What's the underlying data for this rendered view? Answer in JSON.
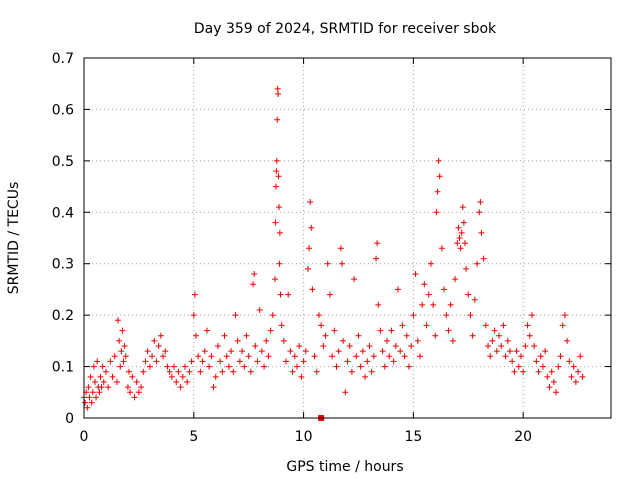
{
  "chart_data": {
    "type": "scatter",
    "title": "Day 359 of 2024, SRMTID for receiver sbok",
    "xlabel": "GPS time / hours",
    "ylabel": "SRMTID / TECUs",
    "xlim": [
      0,
      24
    ],
    "ylim": [
      0,
      0.7
    ],
    "xticks": [
      0,
      5,
      10,
      15,
      20
    ],
    "xtick_labels": [
      "0",
      "5",
      "10",
      "15",
      "20"
    ],
    "yticks": [
      0,
      0.1,
      0.2,
      0.3,
      0.4,
      0.5,
      0.6,
      0.7
    ],
    "ytick_labels": [
      "0",
      "0.1",
      "0.2",
      "0.3",
      "0.4",
      "0.5",
      "0.6",
      "0.7"
    ],
    "grid": true,
    "colors": {
      "series": "#ee0000",
      "grid": "#a0a0a0"
    },
    "series": [
      {
        "name": "SRMTID",
        "marker": "plus",
        "points": [
          [
            0.0,
            0.04
          ],
          [
            0.05,
            0.03
          ],
          [
            0.1,
            0.05
          ],
          [
            0.15,
            0.02
          ],
          [
            0.2,
            0.06
          ],
          [
            0.25,
            0.04
          ],
          [
            0.3,
            0.08
          ],
          [
            0.35,
            0.03
          ],
          [
            0.4,
            0.05
          ],
          [
            0.45,
            0.1
          ],
          [
            0.5,
            0.07
          ],
          [
            0.55,
            0.04
          ],
          [
            0.6,
            0.11
          ],
          [
            0.65,
            0.06
          ],
          [
            0.7,
            0.05
          ],
          [
            0.75,
            0.08
          ],
          [
            0.8,
            0.06
          ],
          [
            0.85,
            0.1
          ],
          [
            0.9,
            0.07
          ],
          [
            1.0,
            0.09
          ],
          [
            1.1,
            0.06
          ],
          [
            1.2,
            0.11
          ],
          [
            1.3,
            0.08
          ],
          [
            1.4,
            0.12
          ],
          [
            1.5,
            0.07
          ],
          [
            1.55,
            0.19
          ],
          [
            1.6,
            0.15
          ],
          [
            1.65,
            0.1
          ],
          [
            1.7,
            0.13
          ],
          [
            1.75,
            0.17
          ],
          [
            1.8,
            0.11
          ],
          [
            1.85,
            0.14
          ],
          [
            1.9,
            0.12
          ],
          [
            2.0,
            0.06
          ],
          [
            2.05,
            0.09
          ],
          [
            2.1,
            0.05
          ],
          [
            2.2,
            0.08
          ],
          [
            2.3,
            0.04
          ],
          [
            2.4,
            0.07
          ],
          [
            2.5,
            0.05
          ],
          [
            2.6,
            0.06
          ],
          [
            2.7,
            0.09
          ],
          [
            2.8,
            0.11
          ],
          [
            2.9,
            0.13
          ],
          [
            3.0,
            0.1
          ],
          [
            3.1,
            0.12
          ],
          [
            3.2,
            0.15
          ],
          [
            3.3,
            0.11
          ],
          [
            3.4,
            0.14
          ],
          [
            3.5,
            0.16
          ],
          [
            3.6,
            0.12
          ],
          [
            3.7,
            0.13
          ],
          [
            3.8,
            0.1
          ],
          [
            3.9,
            0.09
          ],
          [
            4.0,
            0.08
          ],
          [
            4.1,
            0.1
          ],
          [
            4.2,
            0.07
          ],
          [
            4.3,
            0.09
          ],
          [
            4.4,
            0.06
          ],
          [
            4.5,
            0.08
          ],
          [
            4.6,
            0.1
          ],
          [
            4.7,
            0.07
          ],
          [
            4.8,
            0.09
          ],
          [
            4.9,
            0.11
          ],
          [
            5.0,
            0.2
          ],
          [
            5.05,
            0.24
          ],
          [
            5.1,
            0.16
          ],
          [
            5.2,
            0.12
          ],
          [
            5.3,
            0.09
          ],
          [
            5.4,
            0.11
          ],
          [
            5.5,
            0.13
          ],
          [
            5.6,
            0.17
          ],
          [
            5.7,
            0.1
          ],
          [
            5.8,
            0.12
          ],
          [
            5.9,
            0.06
          ],
          [
            6.0,
            0.08
          ],
          [
            6.1,
            0.14
          ],
          [
            6.2,
            0.11
          ],
          [
            6.3,
            0.09
          ],
          [
            6.4,
            0.16
          ],
          [
            6.5,
            0.12
          ],
          [
            6.6,
            0.1
          ],
          [
            6.7,
            0.13
          ],
          [
            6.8,
            0.09
          ],
          [
            6.9,
            0.2
          ],
          [
            7.0,
            0.15
          ],
          [
            7.1,
            0.11
          ],
          [
            7.2,
            0.13
          ],
          [
            7.3,
            0.1
          ],
          [
            7.4,
            0.16
          ],
          [
            7.5,
            0.12
          ],
          [
            7.6,
            0.09
          ],
          [
            7.7,
            0.26
          ],
          [
            7.75,
            0.28
          ],
          [
            7.8,
            0.14
          ],
          [
            7.9,
            0.11
          ],
          [
            8.0,
            0.21
          ],
          [
            8.1,
            0.13
          ],
          [
            8.2,
            0.1
          ],
          [
            8.3,
            0.15
          ],
          [
            8.4,
            0.12
          ],
          [
            8.5,
            0.17
          ],
          [
            8.6,
            0.2
          ],
          [
            8.7,
            0.27
          ],
          [
            8.72,
            0.38
          ],
          [
            8.74,
            0.45
          ],
          [
            8.76,
            0.48
          ],
          [
            8.78,
            0.5
          ],
          [
            8.8,
            0.58
          ],
          [
            8.82,
            0.64
          ],
          [
            8.84,
            0.63
          ],
          [
            8.86,
            0.47
          ],
          [
            8.88,
            0.41
          ],
          [
            8.9,
            0.3
          ],
          [
            8.92,
            0.36
          ],
          [
            8.95,
            0.24
          ],
          [
            9.0,
            0.18
          ],
          [
            9.1,
            0.15
          ],
          [
            9.2,
            0.11
          ],
          [
            9.3,
            0.24
          ],
          [
            9.4,
            0.13
          ],
          [
            9.5,
            0.09
          ],
          [
            9.6,
            0.12
          ],
          [
            9.7,
            0.1
          ],
          [
            9.8,
            0.14
          ],
          [
            9.9,
            0.08
          ],
          [
            10.0,
            0.11
          ],
          [
            10.1,
            0.13
          ],
          [
            10.2,
            0.29
          ],
          [
            10.25,
            0.33
          ],
          [
            10.3,
            0.42
          ],
          [
            10.35,
            0.37
          ],
          [
            10.4,
            0.25
          ],
          [
            10.5,
            0.12
          ],
          [
            10.6,
            0.09
          ],
          [
            10.7,
            0.2
          ],
          [
            10.8,
            0.18
          ],
          [
            10.9,
            0.14
          ],
          [
            11.0,
            0.16
          ],
          [
            11.1,
            0.3
          ],
          [
            11.2,
            0.24
          ],
          [
            11.3,
            0.12
          ],
          [
            11.4,
            0.17
          ],
          [
            11.5,
            0.1
          ],
          [
            11.6,
            0.13
          ],
          [
            11.7,
            0.33
          ],
          [
            11.75,
            0.3
          ],
          [
            11.8,
            0.15
          ],
          [
            11.9,
            0.05
          ],
          [
            12.0,
            0.11
          ],
          [
            12.1,
            0.14
          ],
          [
            12.2,
            0.09
          ],
          [
            12.3,
            0.27
          ],
          [
            12.4,
            0.12
          ],
          [
            12.5,
            0.16
          ],
          [
            12.6,
            0.1
          ],
          [
            12.7,
            0.13
          ],
          [
            12.8,
            0.08
          ],
          [
            12.9,
            0.11
          ],
          [
            13.0,
            0.14
          ],
          [
            13.1,
            0.09
          ],
          [
            13.2,
            0.12
          ],
          [
            13.3,
            0.31
          ],
          [
            13.35,
            0.34
          ],
          [
            13.4,
            0.22
          ],
          [
            13.5,
            0.17
          ],
          [
            13.6,
            0.13
          ],
          [
            13.7,
            0.1
          ],
          [
            13.8,
            0.15
          ],
          [
            13.9,
            0.12
          ],
          [
            14.0,
            0.17
          ],
          [
            14.1,
            0.11
          ],
          [
            14.2,
            0.14
          ],
          [
            14.3,
            0.25
          ],
          [
            14.4,
            0.13
          ],
          [
            14.5,
            0.18
          ],
          [
            14.6,
            0.12
          ],
          [
            14.7,
            0.16
          ],
          [
            14.8,
            0.1
          ],
          [
            14.9,
            0.14
          ],
          [
            15.0,
            0.2
          ],
          [
            15.1,
            0.28
          ],
          [
            15.2,
            0.15
          ],
          [
            15.3,
            0.12
          ],
          [
            15.4,
            0.22
          ],
          [
            15.5,
            0.26
          ],
          [
            15.6,
            0.18
          ],
          [
            15.7,
            0.24
          ],
          [
            15.8,
            0.3
          ],
          [
            15.9,
            0.22
          ],
          [
            16.0,
            0.16
          ],
          [
            16.05,
            0.4
          ],
          [
            16.1,
            0.44
          ],
          [
            16.15,
            0.5
          ],
          [
            16.2,
            0.47
          ],
          [
            16.3,
            0.33
          ],
          [
            16.4,
            0.25
          ],
          [
            16.5,
            0.2
          ],
          [
            16.6,
            0.17
          ],
          [
            16.7,
            0.22
          ],
          [
            16.8,
            0.15
          ],
          [
            16.9,
            0.27
          ],
          [
            17.0,
            0.34
          ],
          [
            17.05,
            0.37
          ],
          [
            17.1,
            0.35
          ],
          [
            17.15,
            0.33
          ],
          [
            17.2,
            0.36
          ],
          [
            17.25,
            0.41
          ],
          [
            17.3,
            0.38
          ],
          [
            17.35,
            0.34
          ],
          [
            17.4,
            0.29
          ],
          [
            17.5,
            0.24
          ],
          [
            17.6,
            0.2
          ],
          [
            17.7,
            0.16
          ],
          [
            17.8,
            0.23
          ],
          [
            17.9,
            0.3
          ],
          [
            18.0,
            0.4
          ],
          [
            18.05,
            0.42
          ],
          [
            18.1,
            0.36
          ],
          [
            18.2,
            0.31
          ],
          [
            18.3,
            0.18
          ],
          [
            18.4,
            0.14
          ],
          [
            18.5,
            0.12
          ],
          [
            18.6,
            0.15
          ],
          [
            18.7,
            0.17
          ],
          [
            18.8,
            0.13
          ],
          [
            18.9,
            0.16
          ],
          [
            19.0,
            0.14
          ],
          [
            19.1,
            0.18
          ],
          [
            19.2,
            0.12
          ],
          [
            19.3,
            0.15
          ],
          [
            19.4,
            0.13
          ],
          [
            19.5,
            0.11
          ],
          [
            19.6,
            0.09
          ],
          [
            19.7,
            0.13
          ],
          [
            19.8,
            0.1
          ],
          [
            19.9,
            0.12
          ],
          [
            20.0,
            0.09
          ],
          [
            20.1,
            0.14
          ],
          [
            20.2,
            0.18
          ],
          [
            20.3,
            0.16
          ],
          [
            20.4,
            0.2
          ],
          [
            20.5,
            0.14
          ],
          [
            20.6,
            0.11
          ],
          [
            20.7,
            0.09
          ],
          [
            20.8,
            0.12
          ],
          [
            20.9,
            0.1
          ],
          [
            21.0,
            0.13
          ],
          [
            21.1,
            0.08
          ],
          [
            21.2,
            0.06
          ],
          [
            21.3,
            0.09
          ],
          [
            21.4,
            0.07
          ],
          [
            21.5,
            0.05
          ],
          [
            21.6,
            0.1
          ],
          [
            21.7,
            0.12
          ],
          [
            21.8,
            0.18
          ],
          [
            21.9,
            0.2
          ],
          [
            22.0,
            0.15
          ],
          [
            22.1,
            0.11
          ],
          [
            22.2,
            0.08
          ],
          [
            22.3,
            0.1
          ],
          [
            22.4,
            0.07
          ],
          [
            22.5,
            0.09
          ],
          [
            22.6,
            0.12
          ],
          [
            22.7,
            0.08
          ]
        ]
      }
    ],
    "zero_marker": {
      "x": 10.8,
      "y": 0
    }
  }
}
